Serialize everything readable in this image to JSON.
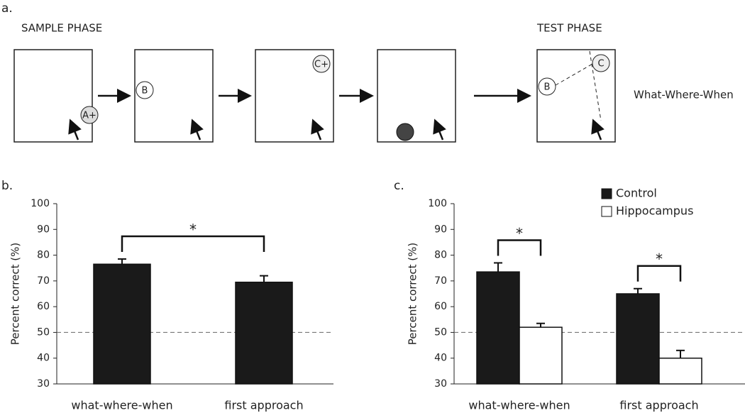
{
  "diagram": {
    "panel_label": "a.",
    "sample_title": "SAMPLE PHASE",
    "test_title": "TEST PHASE",
    "test_label": "What-Where-When",
    "items": [
      "A+",
      "B",
      "C+",
      "C"
    ]
  },
  "chart_data": [
    {
      "type": "bar",
      "panel_label": "b.",
      "y_label": "Percent correct (%)",
      "categories": [
        "what-where-when",
        "first approach"
      ],
      "values": [
        76.5,
        69.5
      ],
      "errors": [
        2,
        2.5
      ],
      "color": "#1a1a1a",
      "ylim": [
        30,
        100
      ],
      "yticks": [
        30,
        40,
        50,
        60,
        70,
        80,
        90,
        100
      ],
      "reference_line": 50,
      "significance": "*"
    },
    {
      "type": "bar",
      "panel_label": "c.",
      "y_label": "Percent correct (%)",
      "categories": [
        "what-where-when",
        "first approach"
      ],
      "series": [
        {
          "name": "Control",
          "color": "#1a1a1a",
          "values": [
            73.5,
            65
          ],
          "errors": [
            3.5,
            2
          ]
        },
        {
          "name": "Hippocampus",
          "color": "#ffffff",
          "values": [
            52,
            40
          ],
          "errors": [
            1.5,
            3
          ]
        }
      ],
      "ylim": [
        30,
        100
      ],
      "yticks": [
        30,
        40,
        50,
        60,
        70,
        80,
        90,
        100
      ],
      "reference_line": 50,
      "significance": [
        "*",
        "*"
      ],
      "legend": "top-right"
    }
  ]
}
